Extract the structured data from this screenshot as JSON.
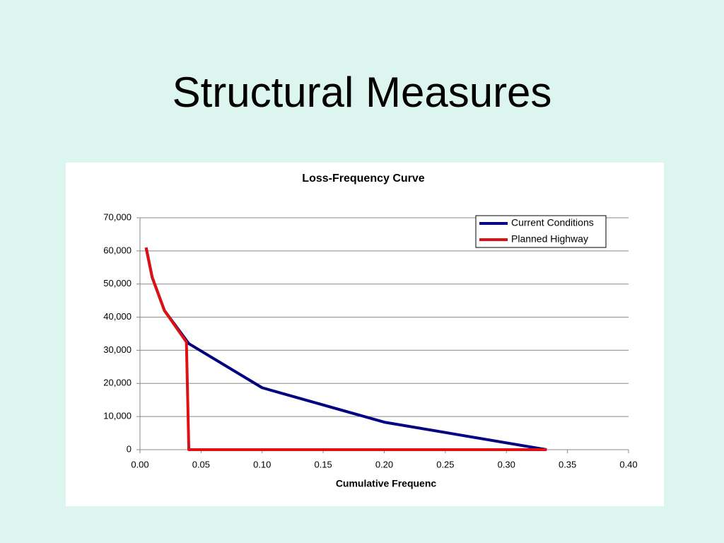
{
  "slide_title": "Structural Measures",
  "chart_data": {
    "type": "line",
    "title": "Loss-Frequency Curve",
    "x_label": "Cumulative Frequenc",
    "xlim": [
      0,
      0.4
    ],
    "xticks": [
      {
        "value": 0,
        "label": "0.00"
      },
      {
        "value": 0.05,
        "label": "0.05"
      },
      {
        "value": 0.1,
        "label": "0.10"
      },
      {
        "value": 0.15,
        "label": "0.15"
      },
      {
        "value": 0.2,
        "label": "0.20"
      },
      {
        "value": 0.25,
        "label": "0.25"
      },
      {
        "value": 0.3,
        "label": "0.30"
      },
      {
        "value": 0.35,
        "label": "0.35"
      },
      {
        "value": 0.4,
        "label": "0.40"
      }
    ],
    "ylim": [
      0,
      70000
    ],
    "yticks": [
      0,
      {
        "value": 10000,
        "label": "10,000"
      },
      {
        "value": 20000,
        "label": "20,000"
      },
      {
        "value": 30000,
        "label": "30,000"
      },
      {
        "value": 40000,
        "label": "40,000"
      },
      {
        "value": 50000,
        "label": "50,000"
      },
      {
        "value": 60000,
        "label": "60,000"
      },
      {
        "value": 70000,
        "label": "70,000"
      }
    ],
    "grid": true,
    "legend": "top-right",
    "series": [
      {
        "name": "Current Conditions",
        "color": "#000080",
        "x": [
          0.005,
          0.01,
          0.02,
          0.04,
          0.1,
          0.2,
          0.333
        ],
        "values": [
          61000,
          52000,
          42000,
          32000,
          18700,
          8300,
          0
        ]
      },
      {
        "name": "Planned Highway",
        "color": "#dd1111",
        "x": [
          0.005,
          0.01,
          0.02,
          0.038,
          0.04,
          0.333
        ],
        "values": [
          61000,
          52000,
          42000,
          32500,
          0,
          0
        ]
      }
    ]
  }
}
